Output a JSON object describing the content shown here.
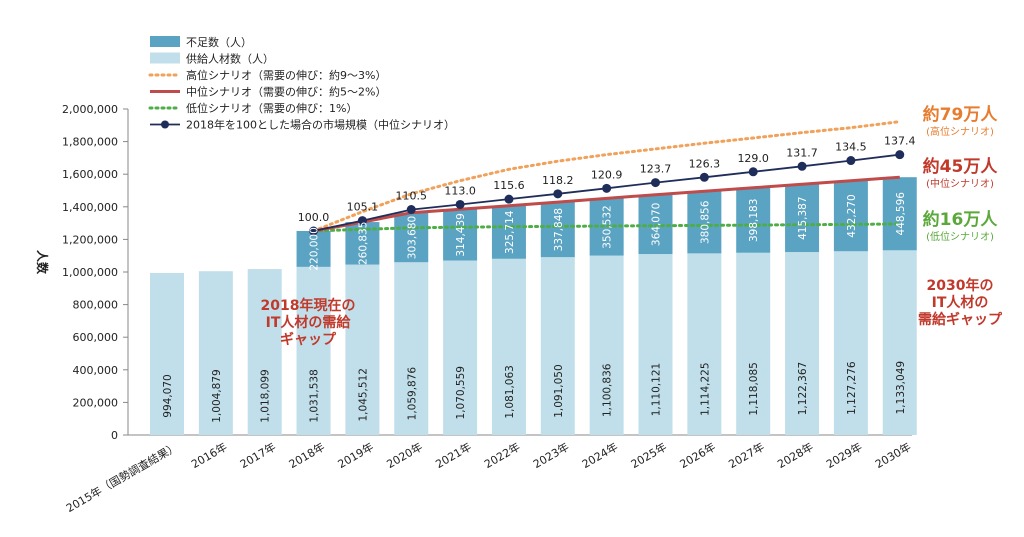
{
  "chart_data": {
    "type": "bar",
    "ylabel": "人数",
    "ylim": [
      0,
      2000000
    ],
    "y_ticks": [
      "0",
      "200,000",
      "400,000",
      "600,000",
      "800,000",
      "1,000,000",
      "1,200,000",
      "1,400,000",
      "1,600,000",
      "1,800,000",
      "2,000,000"
    ],
    "categories": [
      "2015年（国勢調査結果）",
      "2016年",
      "2017年",
      "2018年",
      "2019年",
      "2020年",
      "2021年",
      "2022年",
      "2023年",
      "2024年",
      "2025年",
      "2026年",
      "2027年",
      "2028年",
      "2029年",
      "2030年"
    ],
    "legend": [
      {
        "label": "不足数（人）",
        "kind": "box",
        "color": "#5ba3c2"
      },
      {
        "label": "供給人材数（人）",
        "kind": "box",
        "color": "#c0dfea"
      },
      {
        "label": "高位シナリオ（需要の伸び：約9～3%）",
        "kind": "dot",
        "color": "#f0a15a"
      },
      {
        "label": "中位シナリオ（需要の伸び：約5～2%）",
        "kind": "line",
        "color": "#bf4b4b"
      },
      {
        "label": "低位シナリオ（需要の伸び：1%）",
        "kind": "dot",
        "color": "#4eae46"
      },
      {
        "label": "2018年を100とした場合の市場規模（中位シナリオ）",
        "kind": "marker",
        "color": "#1f2d5a"
      }
    ],
    "series": [
      {
        "name": "供給人材数（人）",
        "color": "#c0dfea",
        "values": [
          994070,
          1004879,
          1018099,
          1031538,
          1045512,
          1059876,
          1070559,
          1081063,
          1091050,
          1100836,
          1110121,
          1114225,
          1118085,
          1122367,
          1127276,
          1133049
        ],
        "labels": [
          "994,070",
          "1,004,879",
          "1,018,099",
          "1,031,538",
          "1,045,512",
          "1,059,876",
          "1,070,559",
          "1,081,063",
          "1,091,050",
          "1,100,836",
          "1,110,121",
          "1,114,225",
          "1,118,085",
          "1,122,367",
          "1,127,276",
          "1,133,049"
        ]
      },
      {
        "name": "不足数（人）",
        "color": "#5ba3c2",
        "values": [
          null,
          null,
          null,
          220000,
          260835,
          303680,
          314439,
          325714,
          337848,
          350532,
          364070,
          380856,
          398183,
          415387,
          432270,
          448596
        ],
        "labels": [
          "",
          "",
          "",
          "220,000",
          "260,835",
          "303,680",
          "314,439",
          "325,714",
          "337,848",
          "350,532",
          "364,070",
          "380,856",
          "398,183",
          "415,387",
          "432,270",
          "448,596"
        ]
      },
      {
        "name": "高位シナリオ（需要の伸び：約9～3%）",
        "color": "#f0a15a",
        "values": [
          null,
          null,
          null,
          1251538,
          1370000,
          1480000,
          1560000,
          1630000,
          1680000,
          1720000,
          1755000,
          1790000,
          1822000,
          1855000,
          1885000,
          1923000
        ]
      },
      {
        "name": "中位シナリオ（需要の伸び：約5～2%）",
        "color": "#bf4b4b",
        "values": [
          null,
          null,
          null,
          1251538,
          1306347,
          1363556,
          1384998,
          1406777,
          1428898,
          1451368,
          1474191,
          1495081,
          1516268,
          1537754,
          1559546,
          1581645
        ]
      },
      {
        "name": "低位シナリオ（需要の伸び：1%）",
        "color": "#4eae46",
        "values": [
          null,
          null,
          null,
          1251538,
          1262000,
          1271000,
          1275000,
          1278000,
          1280000,
          1282000,
          1284000,
          1286000,
          1288000,
          1290000,
          1292000,
          1295000
        ]
      },
      {
        "name": "2018年を100とした場合の市場規模（中位シナリオ）",
        "color": "#1f2d5a",
        "values": [
          null,
          null,
          null,
          100.0,
          105.1,
          110.5,
          113.0,
          115.6,
          118.2,
          120.9,
          123.7,
          126.3,
          129.0,
          131.7,
          134.5,
          137.4
        ],
        "labels": [
          "",
          "",
          "",
          "100.0",
          "105.1",
          "110.5",
          "113.0",
          "115.6",
          "118.2",
          "120.9",
          "123.7",
          "126.3",
          "129.0",
          "131.7",
          "134.5",
          "137.4"
        ]
      }
    ],
    "annotations": {
      "high": {
        "main": "約79万人",
        "sub": "(高位シナリオ)",
        "color": "#e87c2e"
      },
      "mid": {
        "main": "約45万人",
        "sub": "(中位シナリオ)",
        "color": "#c0392b"
      },
      "low": {
        "main": "約16万人",
        "sub": "(低位シナリオ)",
        "color": "#5aa83a"
      },
      "gap2030": {
        "lines": [
          "2030年の",
          "IT人材の",
          "需給ギャップ"
        ],
        "color": "#c0392b"
      },
      "gap2018": {
        "lines": [
          "2018年現在の",
          "IT人材の需給",
          "ギャップ"
        ],
        "color": "#c0392b"
      }
    }
  }
}
